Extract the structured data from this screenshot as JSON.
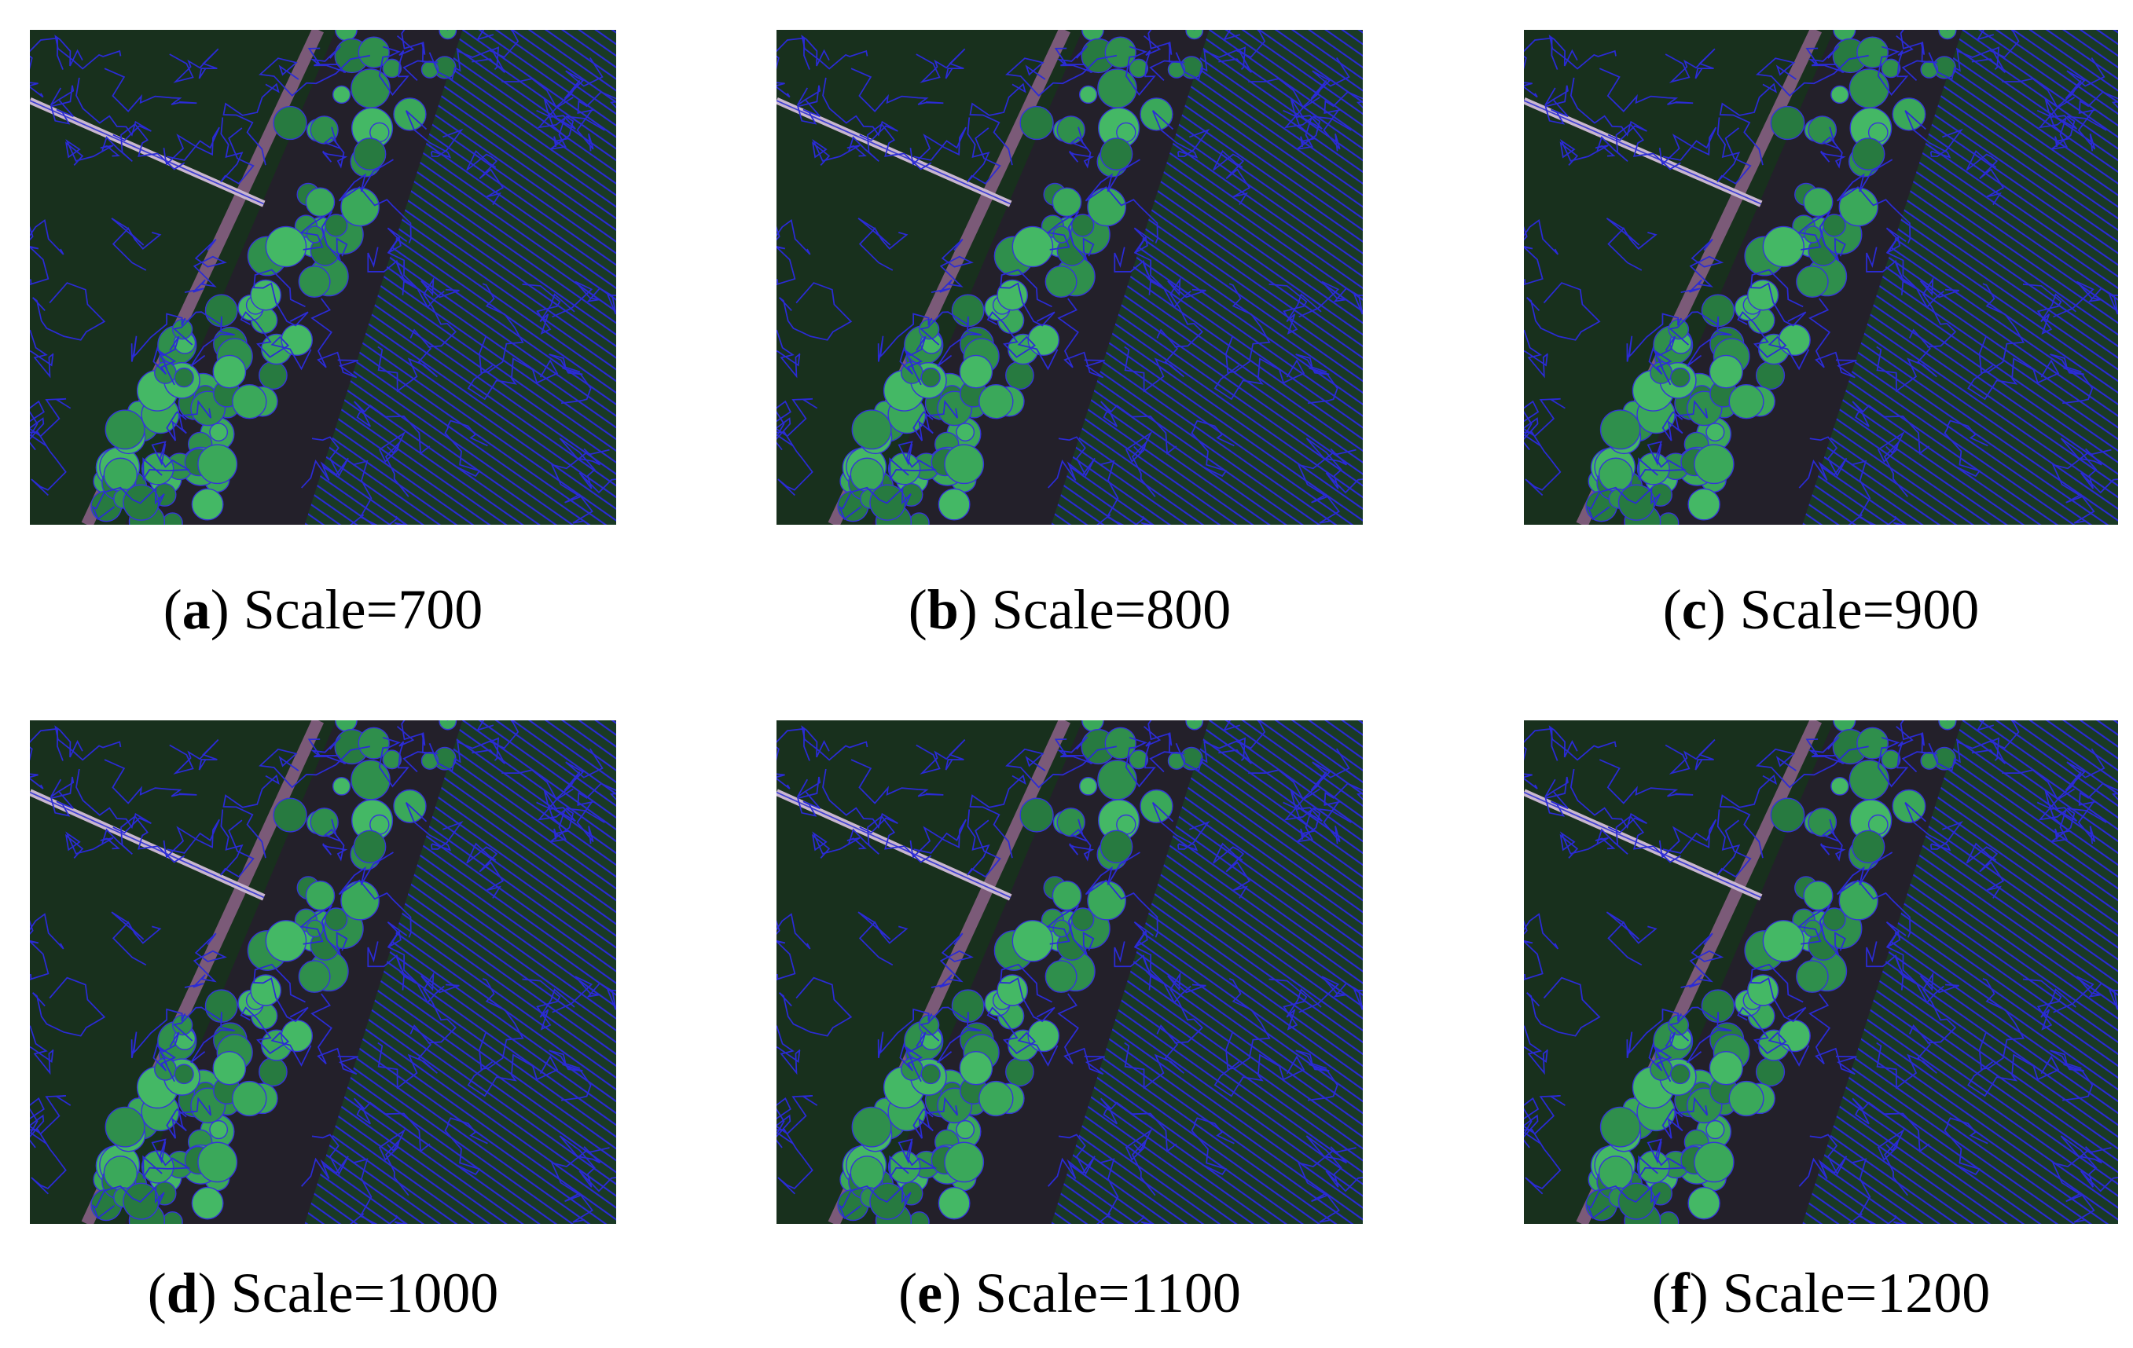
{
  "panels": [
    {
      "open": "(",
      "letter": "a",
      "text": ") Scale=700"
    },
    {
      "open": "(",
      "letter": "b",
      "text": ") Scale=800"
    },
    {
      "open": "(",
      "letter": "c",
      "text": ") Scale=900"
    },
    {
      "open": "(",
      "letter": "d",
      "text": ") Scale=1000"
    },
    {
      "open": "(",
      "letter": "e",
      "text": ") Scale=1100"
    },
    {
      "open": "(",
      "letter": "f",
      "text": ") Scale=1200"
    }
  ]
}
